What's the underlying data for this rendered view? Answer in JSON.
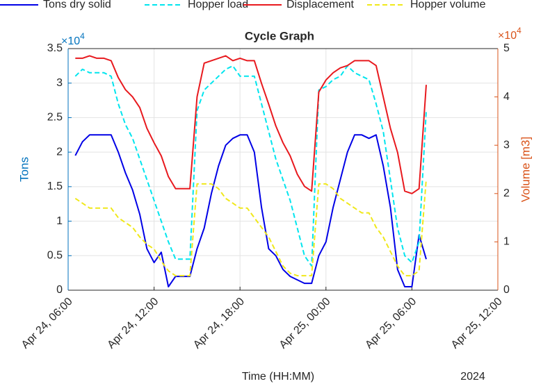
{
  "chart_data": {
    "type": "line",
    "title": "Cycle Graph",
    "xlabel": "Time (HH:MM)",
    "x_year_label": "2024",
    "ylabel": "Tons",
    "y2label": "Volume [m3]",
    "y_multiplier": {
      "base": "×10",
      "exponent": "4"
    },
    "y2_multiplier": {
      "base": "×10",
      "exponent": "4"
    },
    "y_color": "#0072bd",
    "y2_color": "#d95319",
    "grid": true,
    "legend": "top",
    "xlim": [
      "2024-04-24T06:00",
      "2024-04-25T12:00"
    ],
    "xticks": [
      {
        "value": "2024-04-24T06:00",
        "label": "Apr 24, 06:00"
      },
      {
        "value": "2024-04-24T12:00",
        "label": "Apr 24, 12:00"
      },
      {
        "value": "2024-04-24T18:00",
        "label": "Apr 24, 18:00"
      },
      {
        "value": "2024-04-25T00:00",
        "label": "Apr 25, 00:00"
      },
      {
        "value": "2024-04-25T06:00",
        "label": "Apr 25, 06:00"
      },
      {
        "value": "2024-04-25T12:00",
        "label": "Apr 25, 12:00"
      }
    ],
    "ylim": [
      0,
      35000
    ],
    "yticks": [
      0,
      {
        "value": 5000,
        "label": "0.5"
      },
      {
        "value": 10000,
        "label": "1"
      },
      {
        "value": 15000,
        "label": "1.5"
      },
      {
        "value": 20000,
        "label": "2"
      },
      {
        "value": 25000,
        "label": "2.5"
      },
      {
        "value": 30000,
        "label": "3"
      },
      {
        "value": 35000,
        "label": "3.5"
      }
    ],
    "y2lim": [
      0,
      50000
    ],
    "y2ticks": [
      0,
      {
        "value": 10000,
        "label": "1"
      },
      {
        "value": 20000,
        "label": "2"
      },
      {
        "value": 30000,
        "label": "3"
      },
      {
        "value": 40000,
        "label": "4"
      },
      {
        "value": 50000,
        "label": "5"
      }
    ],
    "x": [
      "2024-04-24T06:30",
      "2024-04-24T07:00",
      "2024-04-24T07:30",
      "2024-04-24T08:00",
      "2024-04-24T08:30",
      "2024-04-24T09:00",
      "2024-04-24T09:30",
      "2024-04-24T10:00",
      "2024-04-24T10:30",
      "2024-04-24T11:00",
      "2024-04-24T11:30",
      "2024-04-24T12:00",
      "2024-04-24T12:30",
      "2024-04-24T13:00",
      "2024-04-24T13:30",
      "2024-04-24T14:00",
      "2024-04-24T14:30",
      "2024-04-24T15:00",
      "2024-04-24T15:30",
      "2024-04-24T16:00",
      "2024-04-24T16:30",
      "2024-04-24T17:00",
      "2024-04-24T17:30",
      "2024-04-24T18:00",
      "2024-04-24T18:30",
      "2024-04-24T19:00",
      "2024-04-24T19:30",
      "2024-04-24T20:00",
      "2024-04-24T20:30",
      "2024-04-24T21:00",
      "2024-04-24T21:30",
      "2024-04-24T22:00",
      "2024-04-24T22:30",
      "2024-04-24T23:00",
      "2024-04-24T23:30",
      "2024-04-25T00:00",
      "2024-04-25T00:30",
      "2024-04-25T01:00",
      "2024-04-25T01:30",
      "2024-04-25T02:00",
      "2024-04-25T02:30",
      "2024-04-25T03:00",
      "2024-04-25T03:30",
      "2024-04-25T04:00",
      "2024-04-25T04:30",
      "2024-04-25T05:00",
      "2024-04-25T05:30",
      "2024-04-25T06:00",
      "2024-04-25T06:30",
      "2024-04-25T07:00"
    ],
    "series": [
      {
        "name": "Tons dry solid",
        "color": "#0000e6",
        "line_style": "-",
        "values": [
          19500,
          21500,
          22500,
          22500,
          22500,
          22500,
          20000,
          17000,
          14500,
          11000,
          6000,
          4000,
          5500,
          500,
          2000,
          2000,
          2000,
          6000,
          9000,
          14000,
          18000,
          21000,
          22000,
          22500,
          22500,
          20000,
          12000,
          6000,
          5000,
          3000,
          2000,
          1500,
          1000,
          1000,
          5000,
          7000,
          12000,
          16000,
          20000,
          22500,
          22500,
          22000,
          22500,
          18000,
          12000,
          3000,
          500,
          500,
          8000,
          4500
        ]
      },
      {
        "name": "Hopper load",
        "color": "#00e5ee",
        "line_style": "--",
        "values": [
          31000,
          32000,
          31500,
          31500,
          31500,
          31000,
          27000,
          24000,
          22000,
          19000,
          16000,
          13000,
          10000,
          7000,
          4500,
          4500,
          4500,
          26000,
          29000,
          30000,
          31000,
          32000,
          32500,
          31000,
          31000,
          31000,
          27000,
          23000,
          19000,
          16000,
          13000,
          9000,
          5000,
          3500,
          29000,
          29500,
          30500,
          31000,
          32500,
          31500,
          31000,
          30500,
          27000,
          23000,
          16000,
          9000,
          5000,
          4000,
          7000,
          26000
        ]
      },
      {
        "name": "Displacement",
        "color": "#e8191e",
        "line_style": "-",
        "axis": "y2",
        "values": [
          48000,
          48000,
          48500,
          48000,
          48000,
          47500,
          44000,
          41500,
          40000,
          37800,
          33500,
          30500,
          27800,
          23500,
          21000,
          21000,
          21000,
          40000,
          47000,
          47500,
          48000,
          48500,
          47500,
          48000,
          47500,
          47500,
          42800,
          38500,
          34000,
          30500,
          27800,
          24000,
          21500,
          20500,
          41000,
          43500,
          45000,
          46000,
          46500,
          47500,
          47500,
          47500,
          46500,
          40000,
          33500,
          28500,
          20500,
          20000,
          21000,
          42500
        ]
      },
      {
        "name": "Hopper volume",
        "color": "#f0e81a",
        "line_style": "--",
        "axis": "y2",
        "values": [
          19000,
          18000,
          17000,
          17000,
          17000,
          17000,
          15000,
          14000,
          13000,
          11000,
          9500,
          8500,
          6000,
          4000,
          3000,
          3000,
          3000,
          22000,
          22000,
          22000,
          21000,
          19000,
          18000,
          17000,
          17000,
          15000,
          13000,
          11000,
          8000,
          5000,
          3500,
          3000,
          3000,
          3000,
          22000,
          22000,
          21000,
          19000,
          18000,
          17000,
          16000,
          16000,
          13000,
          11000,
          8000,
          5000,
          3000,
          3000,
          4000,
          23000
        ]
      }
    ]
  }
}
